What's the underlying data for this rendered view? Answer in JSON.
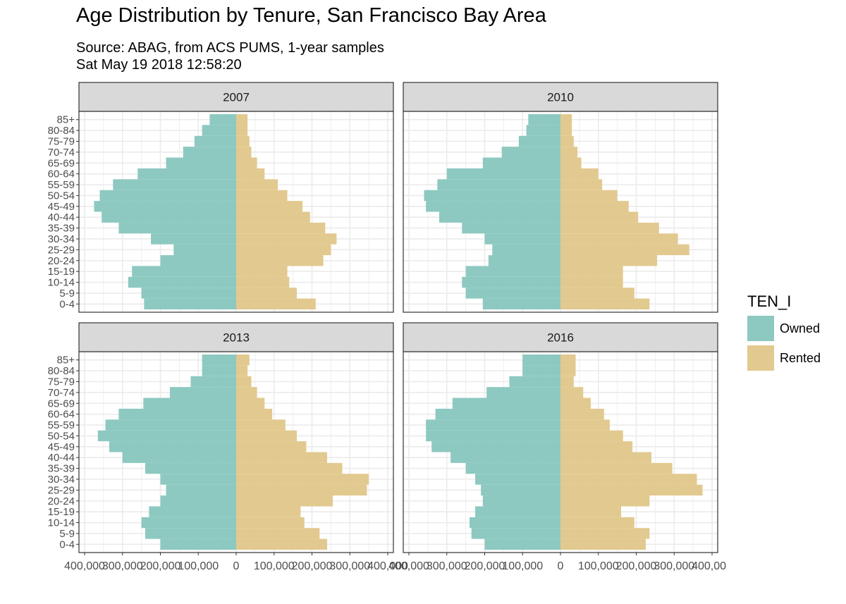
{
  "title": "Age Distribution by Tenure, San Francisco Bay Area",
  "subtitle_line1": "Source: ABAG, from ACS PUMS, 1-year samples",
  "subtitle_line2": "Sat May 19 2018 12:58:20",
  "colors": {
    "Owned": "#8dc9c0",
    "Rented": "#e2c98f",
    "strip_bg": "#d9d9d9",
    "grid": "#ebebeb"
  },
  "chart_data": {
    "type": "bar",
    "orientation": "horizontal-pyramid",
    "age_groups": [
      "0-4",
      "5-9",
      "10-14",
      "15-19",
      "20-24",
      "25-29",
      "30-34",
      "35-39",
      "40-44",
      "45-49",
      "50-54",
      "55-59",
      "60-64",
      "65-69",
      "70-74",
      "75-79",
      "80-84",
      "85+"
    ],
    "xlim": [
      -400000,
      400000
    ],
    "x_tick_labels": [
      "400,000",
      "300,000",
      "200,000",
      "100,000",
      "0",
      "100,000",
      "200,000",
      "300,000",
      "400,000"
    ],
    "grid": true,
    "legend": {
      "title": "TEN_I",
      "position": "right",
      "entries": [
        "Owned",
        "Rented"
      ]
    },
    "facets": [
      {
        "year": "2007",
        "series": [
          {
            "name": "Owned",
            "values": [
              -243000,
              -250000,
              -285000,
              -275000,
              -200000,
              -165000,
              -225000,
              -310000,
              -355000,
              -375000,
              -360000,
              -325000,
              -260000,
              -185000,
              -140000,
              -110000,
              -90000,
              -70000
            ]
          },
          {
            "name": "Rented",
            "values": [
              210000,
              160000,
              140000,
              135000,
              230000,
              250000,
              265000,
              235000,
              195000,
              175000,
              135000,
              110000,
              75000,
              55000,
              40000,
              35000,
              30000,
              30000
            ]
          }
        ]
      },
      {
        "year": "2010",
        "series": [
          {
            "name": "Owned",
            "values": [
              -205000,
              -250000,
              -260000,
              -250000,
              -190000,
              -180000,
              -200000,
              -260000,
              -320000,
              -355000,
              -360000,
              -325000,
              -300000,
              -205000,
              -155000,
              -110000,
              -90000,
              -85000
            ]
          },
          {
            "name": "Rented",
            "values": [
              235000,
              195000,
              165000,
              165000,
              255000,
              340000,
              310000,
              260000,
              205000,
              180000,
              150000,
              110000,
              100000,
              55000,
              45000,
              35000,
              30000,
              30000
            ]
          }
        ]
      },
      {
        "year": "2013",
        "series": [
          {
            "name": "Owned",
            "values": [
              -200000,
              -240000,
              -250000,
              -230000,
              -200000,
              -185000,
              -200000,
              -240000,
              -300000,
              -335000,
              -365000,
              -345000,
              -310000,
              -245000,
              -175000,
              -120000,
              -90000,
              -90000
            ]
          },
          {
            "name": "Rented",
            "values": [
              240000,
              220000,
              180000,
              170000,
              255000,
              345000,
              350000,
              280000,
              240000,
              185000,
              160000,
              130000,
              95000,
              75000,
              55000,
              40000,
              30000,
              35000
            ]
          }
        ]
      },
      {
        "year": "2016",
        "series": [
          {
            "name": "Owned",
            "values": [
              -200000,
              -235000,
              -240000,
              -225000,
              -205000,
              -210000,
              -225000,
              -250000,
              -290000,
              -340000,
              -355000,
              -355000,
              -330000,
              -285000,
              -195000,
              -135000,
              -100000,
              -100000
            ]
          },
          {
            "name": "Rented",
            "values": [
              225000,
              235000,
              195000,
              160000,
              235000,
              375000,
              360000,
              295000,
              240000,
              190000,
              165000,
              130000,
              115000,
              80000,
              60000,
              35000,
              40000,
              40000
            ]
          }
        ]
      }
    ]
  }
}
